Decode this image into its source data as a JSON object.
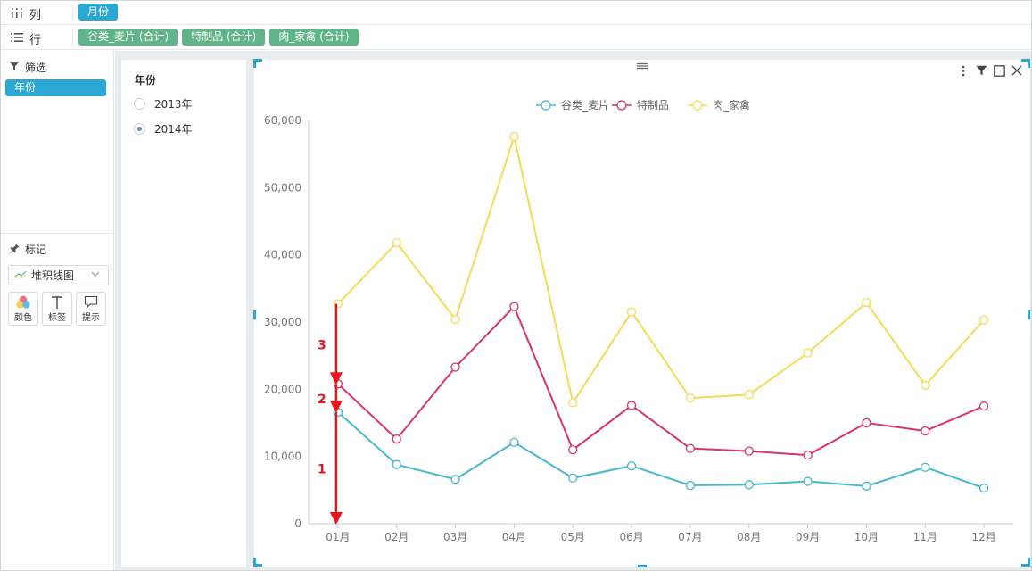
{
  "shelves": {
    "columns": {
      "label": "列",
      "icon": "columns-icon",
      "pills": [
        "月份"
      ]
    },
    "rows": {
      "label": "行",
      "icon": "rows-list-icon",
      "pills": [
        "谷类_麦片 (合计)",
        "特制品 (合计)",
        "肉_家禽 (合计)"
      ]
    }
  },
  "filter_panel": {
    "title": "筛选",
    "icon": "filter-funnel-icon",
    "chip": "年份"
  },
  "marks_panel": {
    "title": "标记",
    "icon": "pin-icon",
    "chart_type": "堆积线图",
    "buttons": [
      {
        "label": "颜色",
        "icon": "color-circles-icon"
      },
      {
        "label": "标签",
        "icon": "text-T-icon"
      },
      {
        "label": "提示",
        "icon": "speech-bubble-icon"
      }
    ]
  },
  "year_filter": {
    "title": "年份",
    "options": [
      {
        "label": "2013年",
        "selected": false
      },
      {
        "label": "2014年",
        "selected": true
      }
    ]
  },
  "colors": {
    "accent": "#2ba7d3",
    "pill_green": "#5fb588",
    "annotation": "#e8141b"
  },
  "chart_data": {
    "type": "line",
    "stacked": true,
    "categories": [
      "01月",
      "02月",
      "03月",
      "04月",
      "05月",
      "06月",
      "07月",
      "08月",
      "09月",
      "10月",
      "11月",
      "12月"
    ],
    "series": [
      {
        "name": "谷类_麦片",
        "color": "#45b8d0",
        "values": [
          16600,
          8800,
          6600,
          12100,
          6800,
          8600,
          5700,
          5800,
          6300,
          5600,
          8400,
          5300
        ]
      },
      {
        "name": "特制品",
        "color": "#d83466",
        "values": [
          4200,
          3800,
          16700,
          20200,
          4200,
          9000,
          5500,
          5000,
          3900,
          9400,
          5400,
          12200
        ]
      },
      {
        "name": "肉_家禽",
        "color": "#f2dc55",
        "values": [
          11900,
          29200,
          7100,
          25300,
          7000,
          13900,
          7500,
          8400,
          15200,
          17900,
          6800,
          12800
        ]
      }
    ],
    "yticks": [
      0,
      10000,
      20000,
      30000,
      40000,
      50000,
      60000
    ],
    "ytick_labels": [
      "0",
      "10,000",
      "20,000",
      "30,000",
      "40,000",
      "50,000",
      "60,000"
    ],
    "ylim": [
      0,
      60000
    ],
    "grid": false,
    "legend_position": "top-center",
    "annotations": [
      {
        "label": "1",
        "from_value": 16600,
        "to_value": 0,
        "category": "01月"
      },
      {
        "label": "2",
        "from_value": 20800,
        "to_value": 16600,
        "category": "01月"
      },
      {
        "label": "3",
        "from_value": 32700,
        "to_value": 20800,
        "category": "01月"
      }
    ]
  }
}
